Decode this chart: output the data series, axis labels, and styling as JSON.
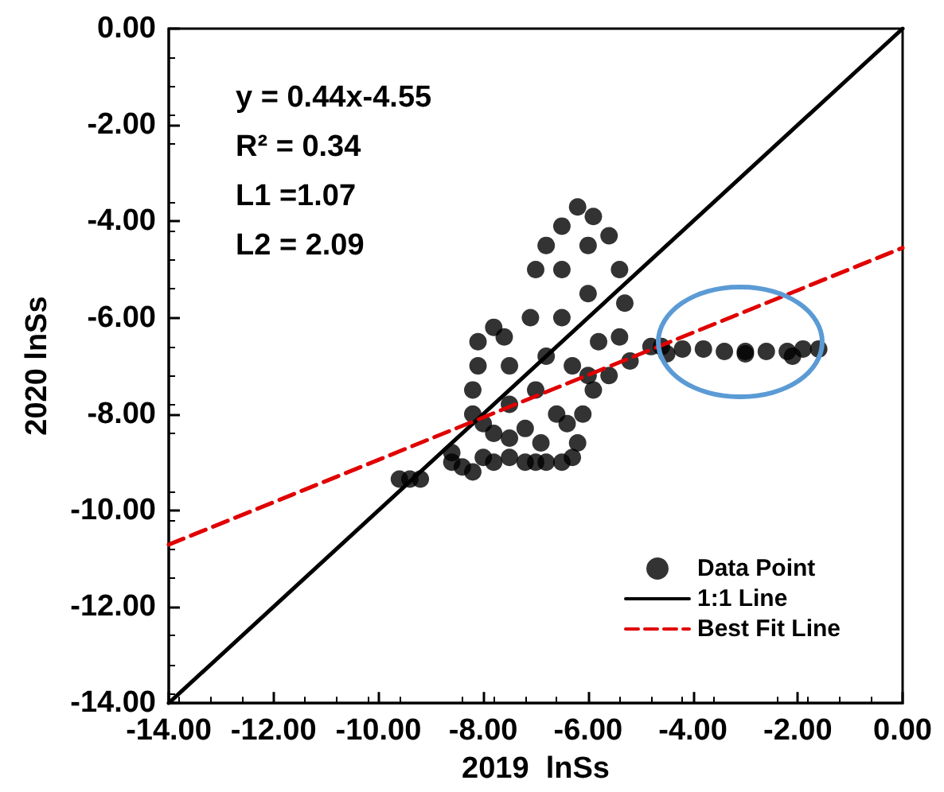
{
  "chart_data": {
    "type": "scatter",
    "xlabel": "2019  lnSs",
    "ylabel": "2020 lnSs",
    "xlim": [
      -14,
      0
    ],
    "ylim": [
      -14,
      0
    ],
    "xticks": [
      {
        "value": -14,
        "label": "-14.00"
      },
      {
        "value": -12,
        "label": "-12.00"
      },
      {
        "value": -10,
        "label": "-10.00"
      },
      {
        "value": -8,
        "label": "-8.00"
      },
      {
        "value": -6,
        "label": "-6.00"
      },
      {
        "value": -4,
        "label": "-4.00"
      },
      {
        "value": -2,
        "label": "-2.00"
      },
      {
        "value": 0,
        "label": "0.00"
      }
    ],
    "yticks": [
      {
        "value": -14,
        "label": "-14.00"
      },
      {
        "value": -12,
        "label": "-12.00"
      },
      {
        "value": -10,
        "label": "-10.00"
      },
      {
        "value": -8,
        "label": "-8.00"
      },
      {
        "value": -6,
        "label": "-6.00"
      },
      {
        "value": -4,
        "label": "-4.00"
      },
      {
        "value": -2,
        "label": "-2.00"
      },
      {
        "value": 0,
        "label": "0.00"
      }
    ],
    "grid": false,
    "legend": "bottom right",
    "annotations": [
      "y = 0.44x-4.55",
      "R² = 0.34",
      "L1 =1.07",
      "L2 = 2.09"
    ],
    "series": [
      {
        "name": "Data Point",
        "color": "#000000",
        "marker": "circle",
        "x": [
          -9.6,
          -9.4,
          -9.2,
          -8.6,
          -8.6,
          -8.4,
          -8.2,
          -8.0,
          -7.8,
          -7.5,
          -7.2,
          -7.0,
          -6.8,
          -6.5,
          -6.3,
          -6.2,
          -6.4,
          -6.1,
          -5.9,
          -5.6,
          -5.2,
          -4.8,
          -8.2,
          -8.2,
          -8.1,
          -8.1,
          -7.8,
          -7.6,
          -7.5,
          -7.5,
          -7.8,
          -8.0,
          -7.1,
          -7.0,
          -6.8,
          -6.5,
          -6.2,
          -5.9,
          -5.6,
          -5.4,
          -5.3,
          -5.4,
          -6.0,
          -6.0,
          -6.5,
          -6.5,
          -6.8,
          -6.3,
          -7.0,
          -6.6,
          -7.2,
          -5.8,
          -6.0,
          -6.9,
          -7.5,
          -4.6,
          -4.2,
          -3.8,
          -3.4,
          -3.0,
          -2.6,
          -2.2,
          -1.9,
          -1.6,
          -4.5,
          -3.0,
          -2.1
        ],
        "values": [
          -9.35,
          -9.35,
          -9.35,
          -8.8,
          -9.0,
          -9.1,
          -9.2,
          -8.9,
          -9.0,
          -8.9,
          -9.0,
          -9.0,
          -9.0,
          -9.0,
          -8.9,
          -8.6,
          -8.2,
          -8.0,
          -7.5,
          -7.2,
          -6.9,
          -6.6,
          -8.0,
          -7.5,
          -7.0,
          -6.5,
          -6.2,
          -6.4,
          -7.0,
          -7.8,
          -8.4,
          -8.2,
          -6.0,
          -5.0,
          -4.5,
          -4.1,
          -3.7,
          -3.9,
          -4.3,
          -5.0,
          -5.7,
          -6.4,
          -4.5,
          -5.5,
          -5.0,
          -6.0,
          -6.8,
          -7.0,
          -7.5,
          -8.0,
          -8.3,
          -6.5,
          -7.2,
          -8.6,
          -8.5,
          -6.6,
          -6.65,
          -6.65,
          -6.7,
          -6.7,
          -6.7,
          -6.7,
          -6.65,
          -6.65,
          -6.75,
          -6.75,
          -6.8
        ]
      },
      {
        "name": "1:1 Line",
        "type": "line",
        "color": "#000000",
        "line_style": "solid",
        "marker": "none",
        "x": [
          -14,
          0
        ],
        "values": [
          -14,
          0
        ]
      },
      {
        "name": "Best Fit Line",
        "type": "line",
        "color": "#e00000",
        "line_style": "dashed",
        "marker": "none",
        "x": [
          -14,
          0
        ],
        "values": [
          -10.71,
          -4.55
        ]
      }
    ]
  }
}
